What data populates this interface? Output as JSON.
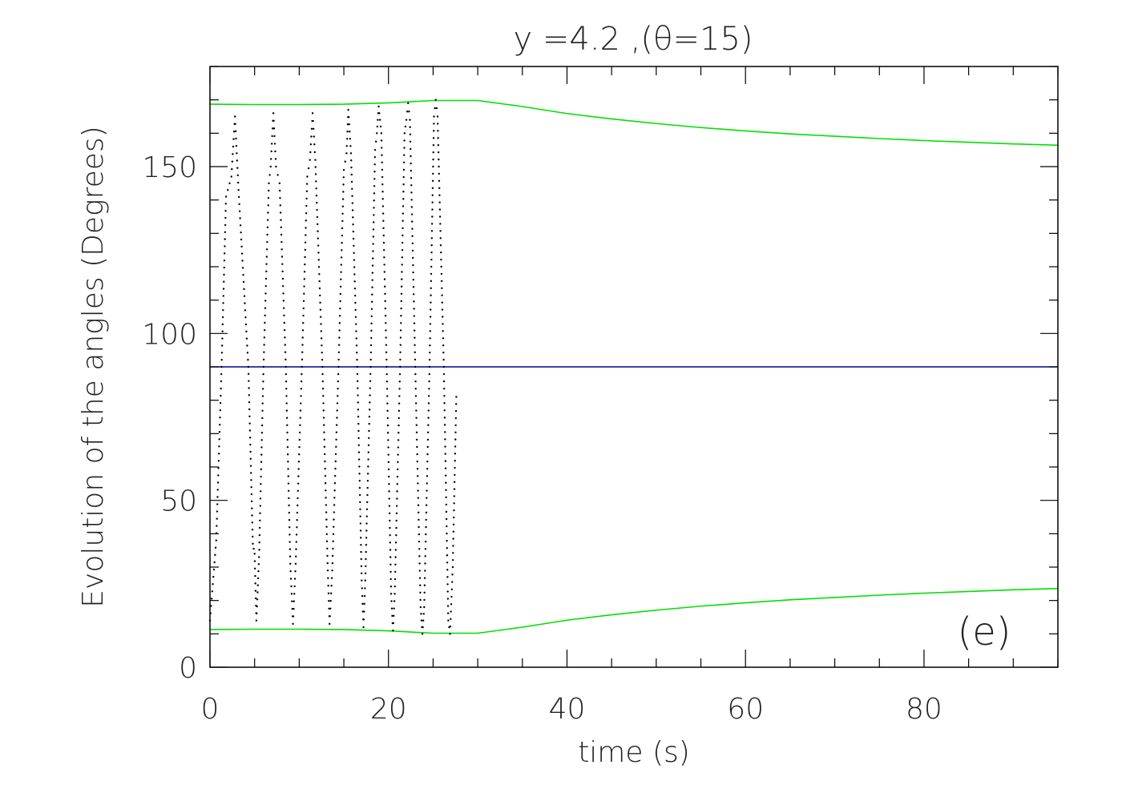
{
  "chart_data": {
    "type": "line",
    "title": "y  =4.2  ,(θ=15)",
    "xlabel": "time (s)",
    "ylabel": "Evolution of the angles (Degrees)",
    "panel_label": "(e)",
    "xlim": [
      0,
      95
    ],
    "ylim": [
      0,
      180
    ],
    "xticks": [
      0,
      20,
      40,
      60,
      80
    ],
    "yticks": [
      0,
      50,
      100,
      150
    ],
    "x_minor_step": 5,
    "y_minor_step": 10,
    "grid": false,
    "legend": "none",
    "series": [
      {
        "style": "line",
        "color": "#00e000",
        "points": [
          [
            0,
            168.7
          ],
          [
            5,
            168.6
          ],
          [
            10,
            168.6
          ],
          [
            15,
            168.7
          ],
          [
            20,
            169.1
          ],
          [
            25,
            169.8
          ],
          [
            30,
            169.8
          ],
          [
            35,
            168.0
          ],
          [
            40,
            165.9
          ],
          [
            45,
            164.3
          ],
          [
            50,
            162.9
          ],
          [
            55,
            161.7
          ],
          [
            60,
            160.7
          ],
          [
            65,
            159.8
          ],
          [
            70,
            159.1
          ],
          [
            75,
            158.4
          ],
          [
            80,
            157.8
          ],
          [
            85,
            157.3
          ],
          [
            90,
            156.8
          ],
          [
            95,
            156.4
          ]
        ]
      },
      {
        "style": "line",
        "color": "#00e000",
        "points": [
          [
            0,
            11.3
          ],
          [
            5,
            11.4
          ],
          [
            10,
            11.4
          ],
          [
            15,
            11.3
          ],
          [
            20,
            10.9
          ],
          [
            25,
            10.2
          ],
          [
            30,
            10.2
          ],
          [
            35,
            12.0
          ],
          [
            40,
            14.1
          ],
          [
            45,
            15.7
          ],
          [
            50,
            17.1
          ],
          [
            55,
            18.3
          ],
          [
            60,
            19.3
          ],
          [
            65,
            20.2
          ],
          [
            70,
            20.9
          ],
          [
            75,
            21.6
          ],
          [
            80,
            22.2
          ],
          [
            85,
            22.7
          ],
          [
            90,
            23.2
          ],
          [
            95,
            23.6
          ]
        ]
      },
      {
        "style": "line",
        "color": "#00008b",
        "points": [
          [
            0,
            90
          ],
          [
            95,
            90
          ]
        ]
      },
      {
        "style": "dots",
        "color": "#000000",
        "points": [
          [
            0,
            14
          ],
          [
            0.7,
            38
          ],
          [
            1.3,
            90
          ],
          [
            1.8,
            141
          ],
          [
            2.4,
            147
          ],
          [
            2.8,
            165
          ],
          [
            3.2,
            143
          ],
          [
            4.3,
            90
          ],
          [
            4.8,
            37
          ],
          [
            5.0,
            34
          ],
          [
            5.2,
            14
          ],
          [
            5.5,
            33
          ],
          [
            6.0,
            90
          ],
          [
            6.6,
            145
          ],
          [
            6.8,
            150
          ],
          [
            7.1,
            166
          ],
          [
            7.4,
            150
          ],
          [
            7.8,
            145
          ],
          [
            8.5,
            90
          ],
          [
            9.0,
            31
          ],
          [
            9.3,
            13
          ],
          [
            9.6,
            31
          ],
          [
            10.3,
            90
          ],
          [
            10.9,
            147
          ],
          [
            11.2,
            152
          ],
          [
            11.5,
            166
          ],
          [
            11.8,
            152
          ],
          [
            12.6,
            90
          ],
          [
            13.2,
            29
          ],
          [
            13.4,
            13
          ],
          [
            13.7,
            29
          ],
          [
            14.4,
            90
          ],
          [
            15.0,
            149
          ],
          [
            15.3,
            154
          ],
          [
            15.5,
            167
          ],
          [
            15.8,
            154
          ],
          [
            16.5,
            90
          ],
          [
            17.0,
            26
          ],
          [
            17.2,
            12
          ],
          [
            17.4,
            26
          ],
          [
            18.0,
            90
          ],
          [
            18.5,
            155
          ],
          [
            18.7,
            160
          ],
          [
            18.9,
            168
          ],
          [
            19.2,
            160
          ],
          [
            19.8,
            90
          ],
          [
            20.3,
            22
          ],
          [
            20.5,
            11
          ],
          [
            20.7,
            22
          ],
          [
            21.3,
            90
          ],
          [
            21.8,
            160
          ],
          [
            22.0,
            164
          ],
          [
            22.2,
            169
          ],
          [
            22.4,
            164
          ],
          [
            23.0,
            90
          ],
          [
            23.6,
            18
          ],
          [
            23.8,
            10
          ],
          [
            24.0,
            18
          ],
          [
            24.6,
            90
          ],
          [
            25.1,
            165
          ],
          [
            25.3,
            170
          ],
          [
            25.5,
            165
          ],
          [
            26.2,
            90
          ],
          [
            26.7,
            14
          ],
          [
            26.9,
            10
          ],
          [
            27.2,
            30
          ],
          [
            27.6,
            81
          ]
        ]
      }
    ]
  }
}
